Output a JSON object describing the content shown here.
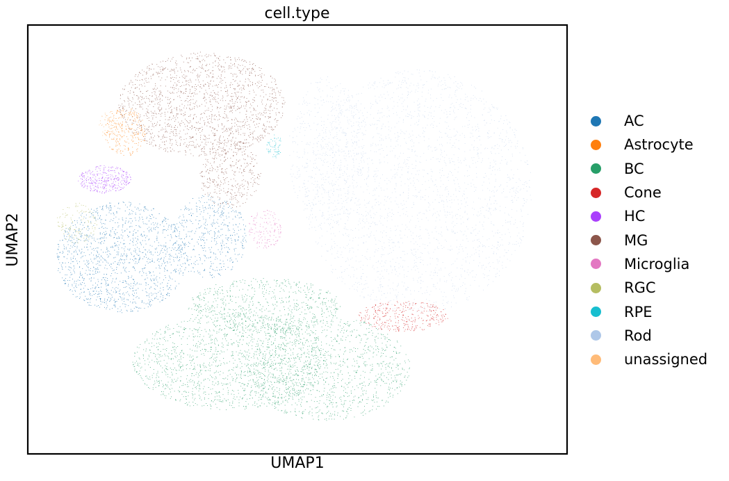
{
  "chart_data": {
    "type": "scatter",
    "title": "cell.type",
    "xlabel": "UMAP1",
    "ylabel": "UMAP2",
    "grid": false,
    "ticks": false,
    "legend_position": "right",
    "series": [
      {
        "name": "AC",
        "color": "#1f77b4"
      },
      {
        "name": "Astrocyte",
        "color": "#ff7f0e"
      },
      {
        "name": "BC",
        "color": "#279e68"
      },
      {
        "name": "Cone",
        "color": "#d62728"
      },
      {
        "name": "HC",
        "color": "#aa40fc"
      },
      {
        "name": "MG",
        "color": "#8c564b"
      },
      {
        "name": "Microglia",
        "color": "#e377c2"
      },
      {
        "name": "RGC",
        "color": "#b5bd61"
      },
      {
        "name": "RPE",
        "color": "#17becf"
      },
      {
        "name": "Rod",
        "color": "#aec7e8"
      },
      {
        "name": "unassigned",
        "color": "#ffbb78"
      }
    ]
  }
}
